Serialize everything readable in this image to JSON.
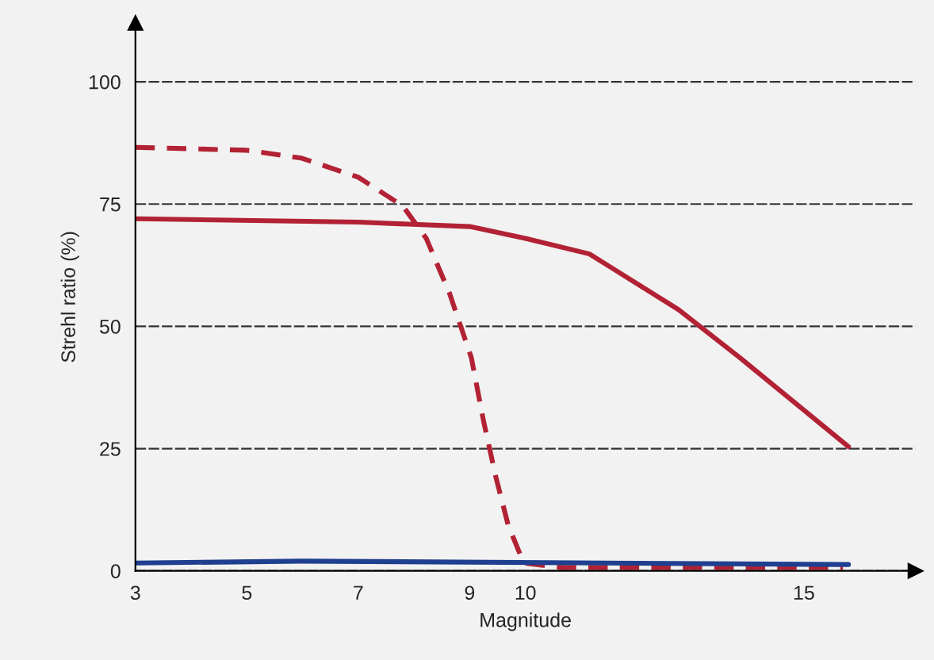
{
  "chart_data": {
    "type": "line",
    "xlabel": "Magnitude",
    "ylabel": "Strehl ratio (%)",
    "xlim": [
      3,
      17
    ],
    "ylim": [
      0,
      112
    ],
    "xticks": [
      3,
      5,
      7,
      9,
      10,
      15
    ],
    "yticks": [
      0,
      25,
      50,
      75,
      100
    ],
    "grid": "y",
    "series": [
      {
        "color": "#b22234",
        "line_style": "solid",
        "x": [
          3,
          7,
          9,
          10,
          11.15,
          12.75,
          13.85,
          15.8
        ],
        "values": [
          72,
          71.3,
          70.4,
          68,
          64.8,
          53.4,
          43.6,
          25.4
        ]
      },
      {
        "color": "#b22234",
        "line_style": "dashed",
        "x": [
          3,
          5,
          5.98,
          7,
          7.8,
          8.22,
          8.64,
          9.03,
          9.25,
          9.47,
          9.69,
          9.97,
          10.65,
          15.7
        ],
        "values": [
          86.6,
          86,
          84.4,
          80.5,
          74.6,
          68,
          56.7,
          43.6,
          30.6,
          19.2,
          9.4,
          1.6,
          0.7,
          0.7
        ]
      },
      {
        "color": "#1f3f8f",
        "line_style": "solid",
        "x": [
          3,
          5.98,
          15.8
        ],
        "values": [
          1.6,
          2,
          1.3
        ]
      }
    ]
  }
}
